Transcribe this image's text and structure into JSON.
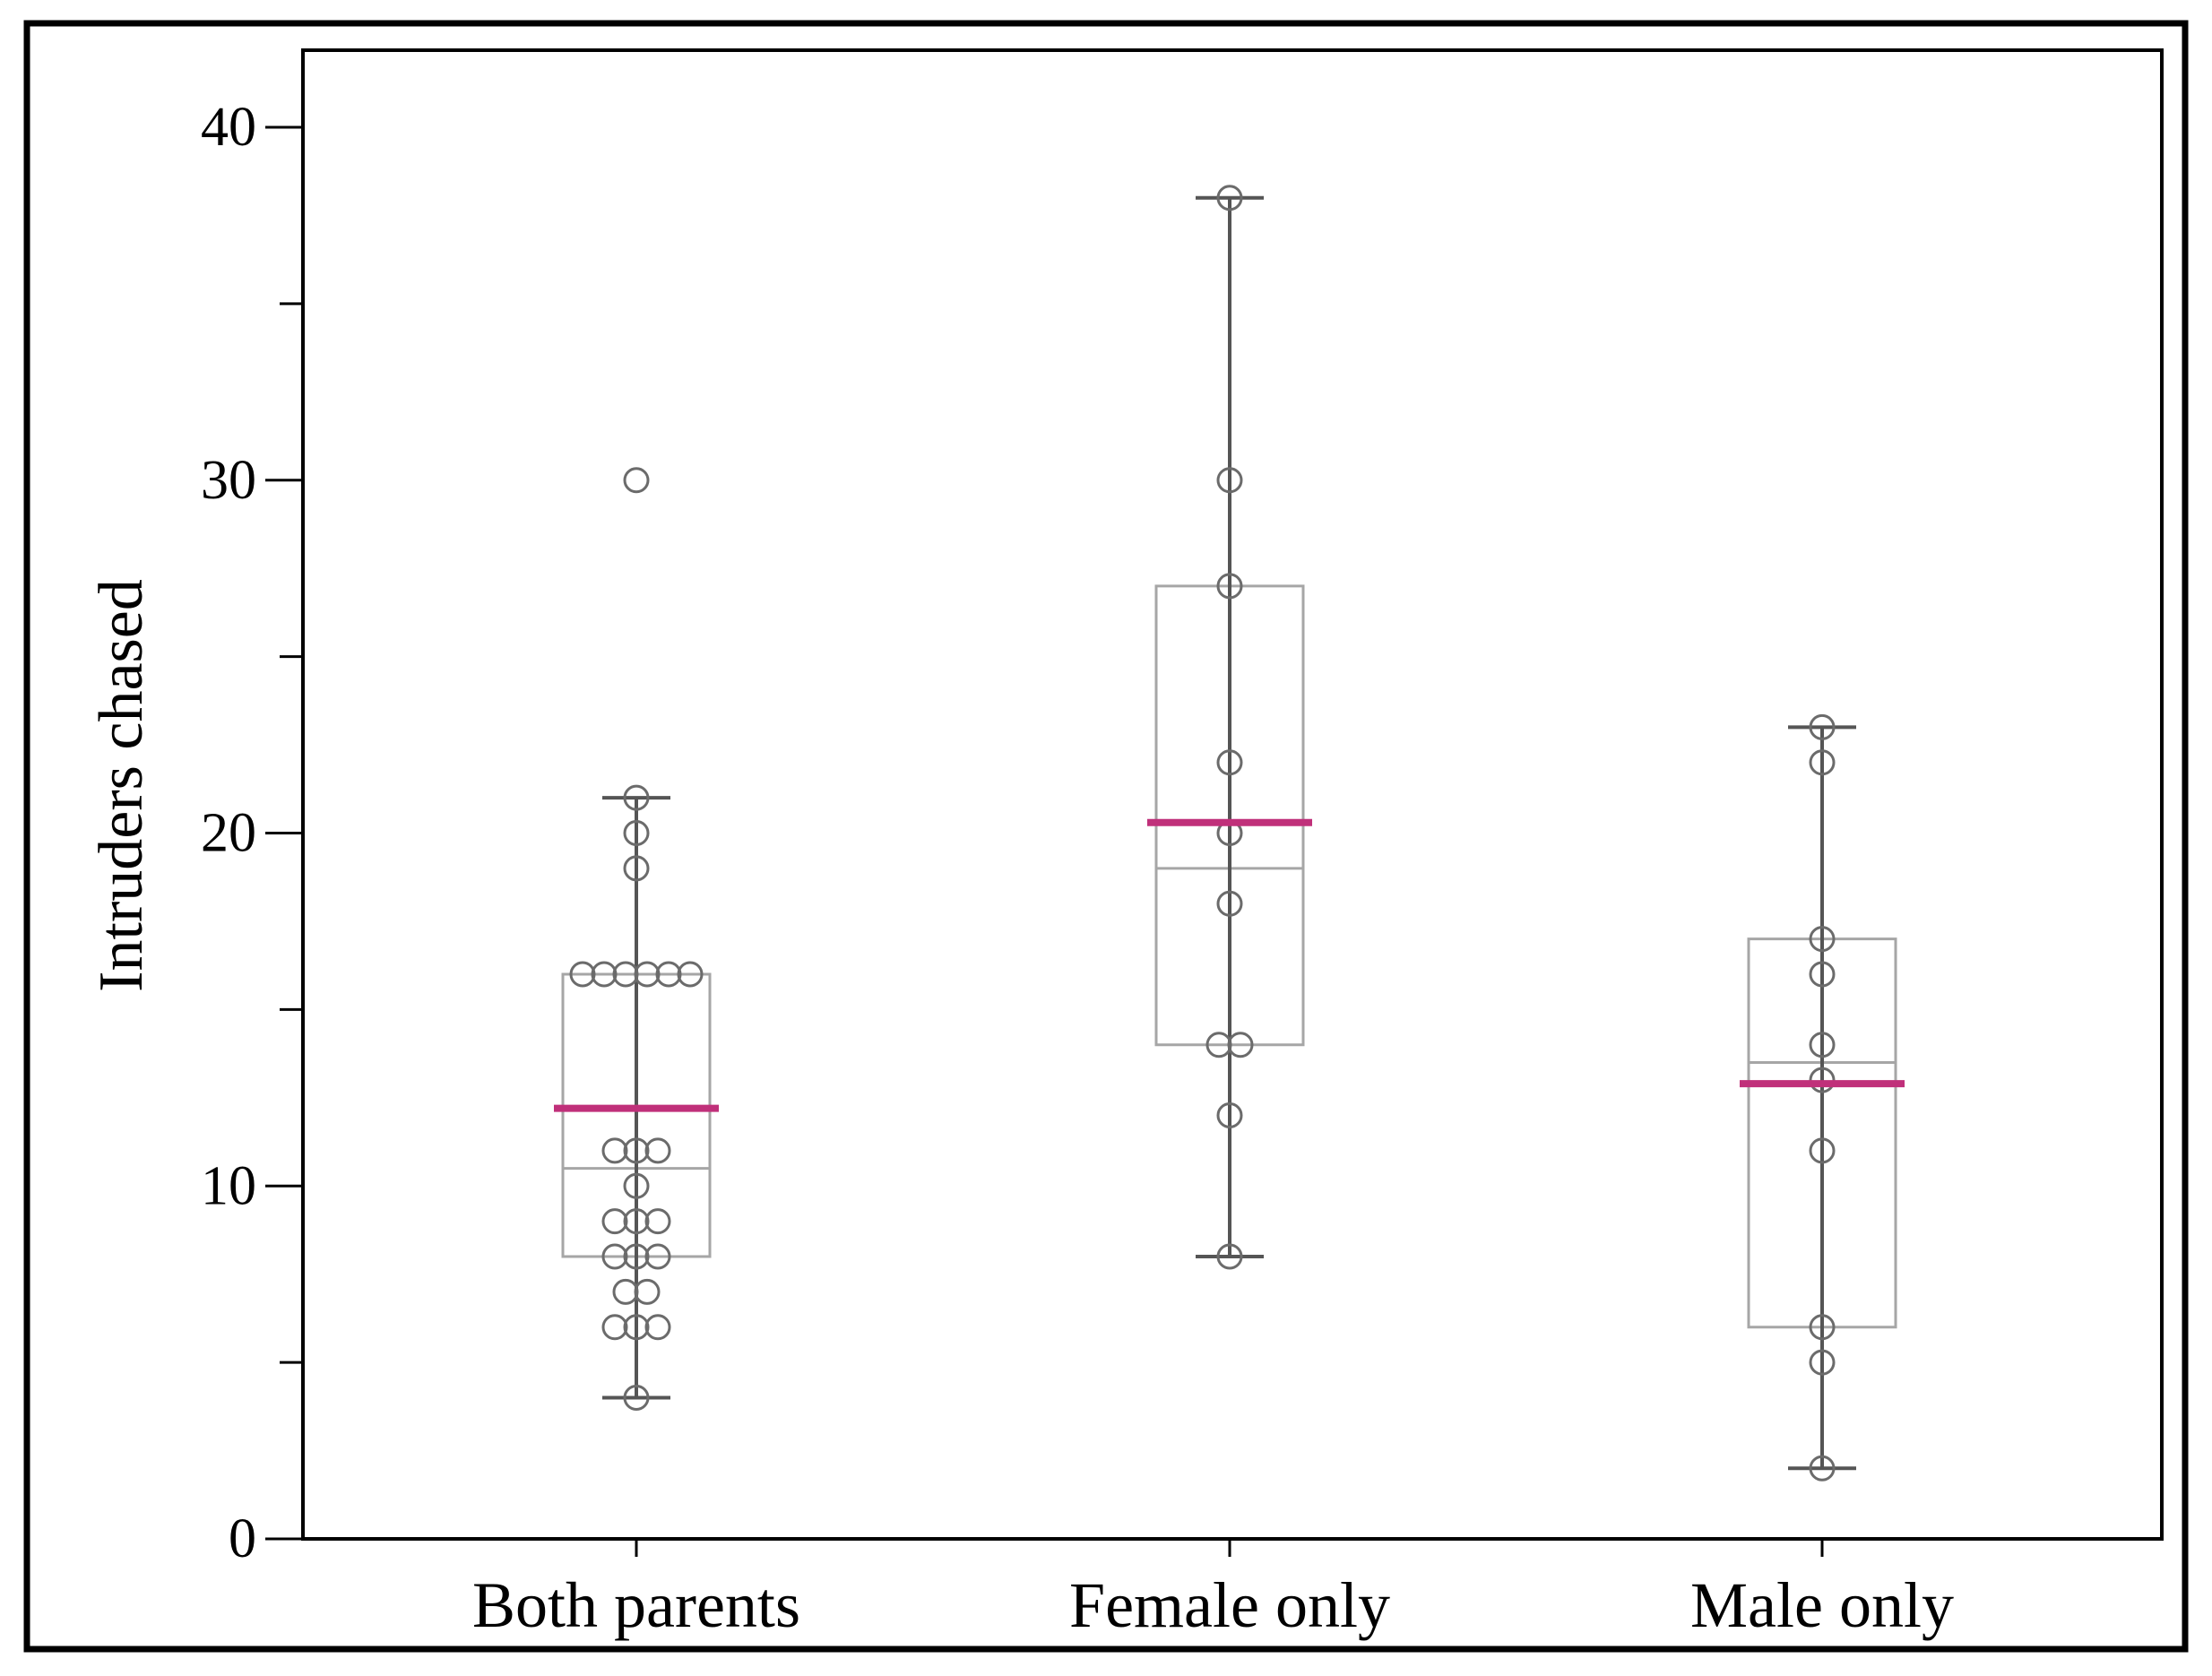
{
  "chart_data": {
    "type": "boxplot",
    "title": "",
    "xlabel": "",
    "ylabel": "Intruders chased",
    "ylim": [
      0,
      42
    ],
    "yticks": [
      0,
      10,
      20,
      30,
      40
    ],
    "yminor_ticks": [
      5,
      15,
      25,
      35
    ],
    "categories": [
      "Both parents",
      "Female only",
      "Male only"
    ],
    "colors": {
      "frame": "#000000",
      "box": "#a6a6a6",
      "whisker": "#555555",
      "point": "#6b6b6b",
      "mean": "#c0307a"
    },
    "groups": [
      {
        "name": "Both parents",
        "whisker_low": 4,
        "q1": 8,
        "median": 10.5,
        "q3": 16,
        "whisker_high": 21,
        "mean": 12.2,
        "points": [
          4,
          6,
          6,
          6,
          7,
          7,
          8,
          8,
          8,
          9,
          9,
          9,
          10,
          11,
          11,
          11,
          16,
          16,
          16,
          16,
          16,
          16,
          19,
          20,
          21,
          30
        ]
      },
      {
        "name": "Female only",
        "whisker_low": 8,
        "q1": 14,
        "median": 19,
        "q3": 27,
        "whisker_high": 38,
        "mean": 20.3,
        "points": [
          8,
          12,
          14,
          14,
          18,
          20,
          22,
          27,
          30,
          38
        ]
      },
      {
        "name": "Male only",
        "whisker_low": 2,
        "q1": 6,
        "median": 13.5,
        "q3": 17,
        "whisker_high": 23,
        "mean": 12.9,
        "points": [
          2,
          5,
          6,
          11,
          13,
          14,
          16,
          17,
          22,
          23
        ]
      }
    ]
  }
}
